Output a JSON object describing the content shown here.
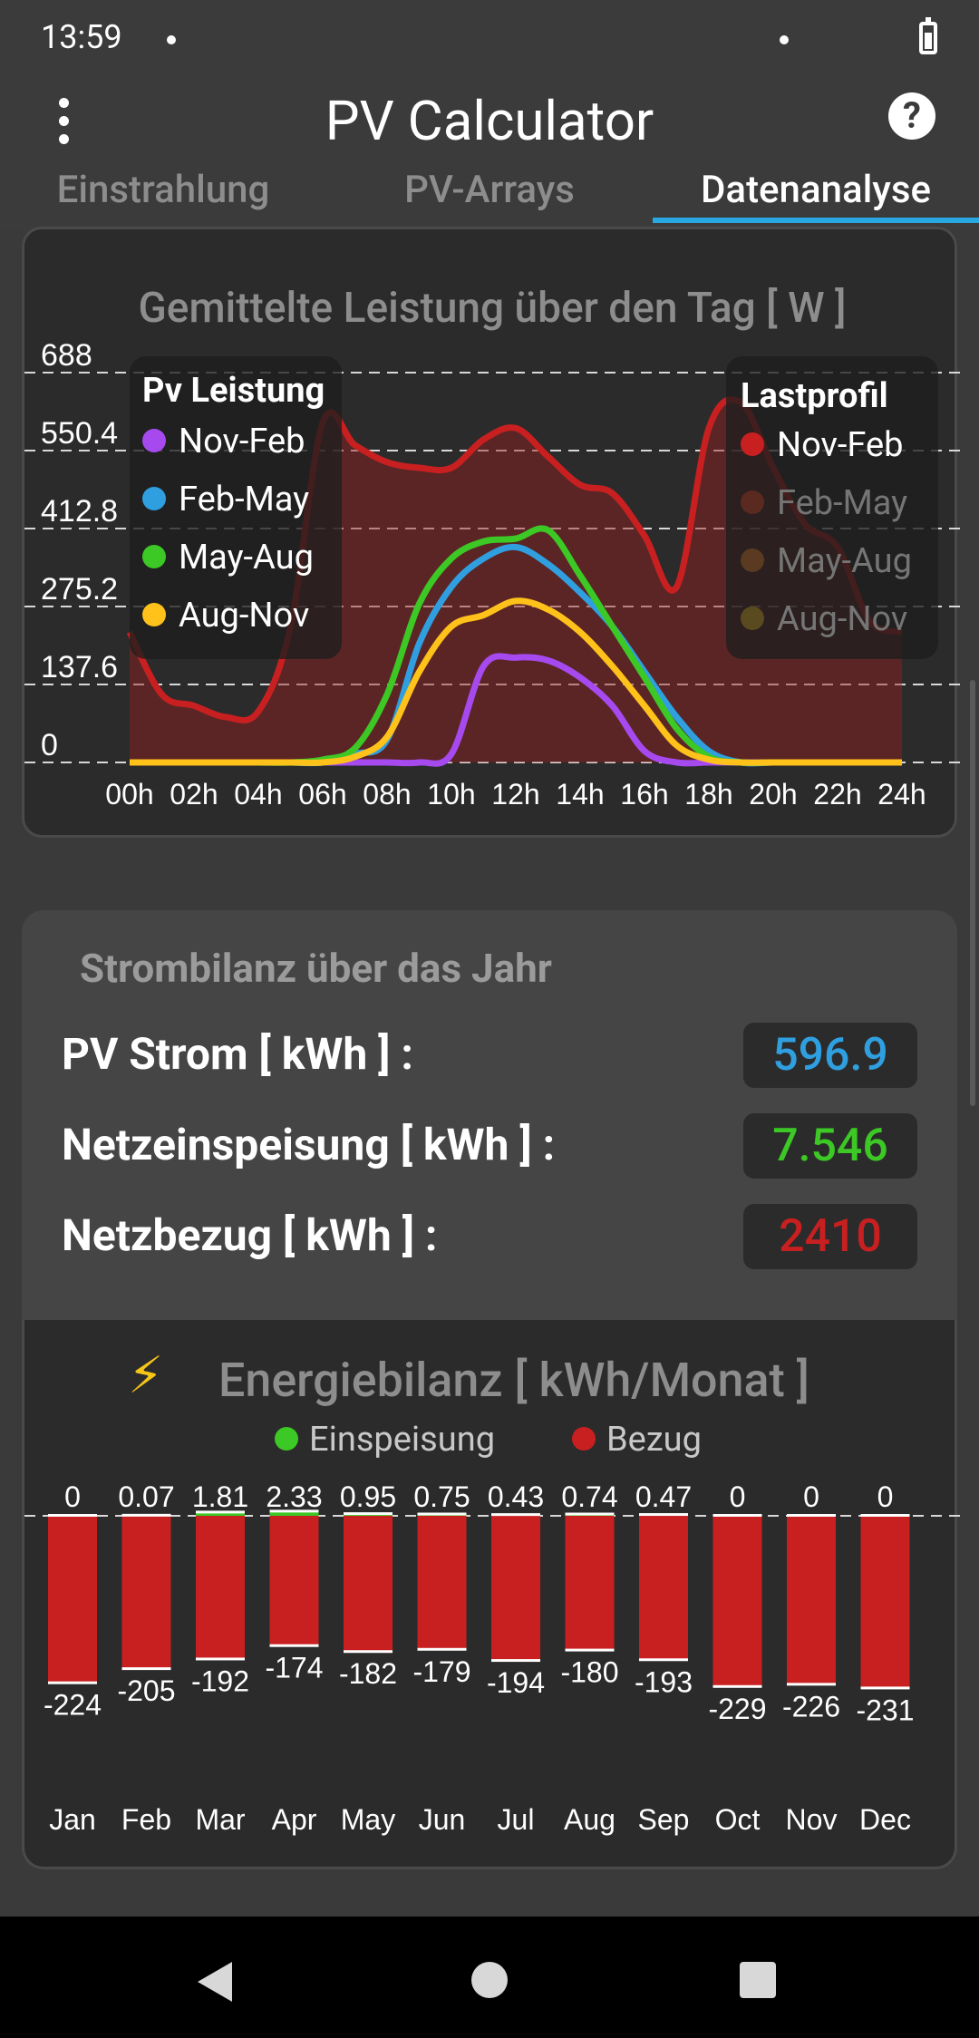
{
  "status": {
    "time": "13:59"
  },
  "app": {
    "title": "PV Calculator",
    "help_symbol": "?"
  },
  "tabs": [
    {
      "label": "Einstrahlung"
    },
    {
      "label": "PV-Arrays"
    },
    {
      "label": "Datenanalyse",
      "active": true
    }
  ],
  "daily_chart": {
    "title": "Gemittelte Leistung über den Tag  [ W ]",
    "pv_legend": {
      "title": "Pv Leistung",
      "items": [
        "Nov-Feb",
        "Feb-May",
        "May-Aug",
        "Aug-Nov"
      ]
    },
    "load_legend": {
      "title": "Lastprofil",
      "items": [
        "Nov-Feb",
        "Feb-May",
        "May-Aug",
        "Aug-Nov"
      ]
    }
  },
  "chart_data": [
    {
      "type": "line",
      "title": "Gemittelte Leistung über den Tag  [ W ]",
      "ylabel": "W",
      "ylim": [
        0,
        688
      ],
      "y_ticks": [
        "688",
        "550.4",
        "412.8",
        "275.2",
        "137.6",
        "0"
      ],
      "x_ticks": [
        "00h",
        "02h",
        "04h",
        "06h",
        "08h",
        "10h",
        "12h",
        "14h",
        "16h",
        "18h",
        "20h",
        "22h",
        "24h"
      ],
      "x": [
        0,
        1,
        2,
        3,
        4,
        5,
        6,
        7,
        8,
        9,
        10,
        11,
        12,
        13,
        14,
        15,
        16,
        17,
        18,
        19,
        20,
        21,
        22,
        23,
        24
      ],
      "series": [
        {
          "group": "Pv Leistung",
          "name": "Nov-Feb",
          "color": "#a64af0",
          "values": [
            0,
            0,
            0,
            0,
            0,
            0,
            0,
            0,
            0,
            0,
            15,
            170,
            185,
            180,
            150,
            100,
            20,
            0,
            0,
            0,
            0,
            0,
            0,
            0,
            0
          ]
        },
        {
          "group": "Pv Leistung",
          "name": "Feb-May",
          "color": "#2f9fe0",
          "values": [
            0,
            0,
            0,
            0,
            0,
            0,
            0,
            15,
            40,
            210,
            310,
            360,
            380,
            350,
            300,
            240,
            160,
            80,
            20,
            0,
            0,
            0,
            0,
            0,
            0
          ]
        },
        {
          "group": "Pv Leistung",
          "name": "May-Aug",
          "color": "#3cc825",
          "values": [
            0,
            0,
            0,
            0,
            0,
            0,
            5,
            25,
            120,
            280,
            360,
            390,
            395,
            410,
            330,
            240,
            150,
            60,
            10,
            0,
            0,
            0,
            0,
            0,
            0
          ]
        },
        {
          "group": "Pv Leistung",
          "name": "Aug-Nov",
          "color": "#ffc21a",
          "values": [
            0,
            0,
            0,
            0,
            0,
            0,
            0,
            10,
            45,
            160,
            240,
            260,
            285,
            270,
            230,
            170,
            100,
            30,
            5,
            0,
            0,
            0,
            0,
            0,
            0
          ]
        },
        {
          "group": "Lastprofil",
          "name": "Nov-Feb",
          "color": "#c82020",
          "values": [
            230,
            120,
            100,
            80,
            90,
            240,
            600,
            560,
            530,
            520,
            520,
            570,
            590,
            540,
            490,
            475,
            400,
            310,
            590,
            635,
            520,
            420,
            380,
            250,
            230
          ]
        }
      ]
    },
    {
      "type": "bar",
      "title": "Energiebilanz  [ kWh/Monat ]",
      "categories": [
        "Jan",
        "Feb",
        "Mar",
        "Apr",
        "May",
        "Jun",
        "Jul",
        "Aug",
        "Sep",
        "Oct",
        "Nov",
        "Dec"
      ],
      "series": [
        {
          "name": "Einspeisung",
          "color": "#3cc825",
          "values": [
            0,
            0.07,
            1.81,
            2.33,
            0.95,
            0.75,
            0.43,
            0.74,
            0.47,
            0,
            0,
            0
          ],
          "labels": [
            "0",
            "0.07",
            "1.81",
            "2.33",
            "0.95",
            "0.75",
            "0.43",
            "0.74",
            "0.47",
            "0",
            "0",
            "0"
          ]
        },
        {
          "name": "Bezug",
          "color": "#c82020",
          "values": [
            -224,
            -205,
            -192,
            -174,
            -182,
            -179,
            -194,
            -180,
            -193,
            -229,
            -226,
            -231
          ],
          "labels": [
            "-224",
            "-205",
            "-192",
            "-174",
            "-182",
            "-179",
            "-194",
            "-180",
            "-193",
            "-229",
            "-226",
            "-231"
          ]
        }
      ]
    }
  ],
  "balance": {
    "title": "Strombilanz über das Jahr",
    "rows": [
      {
        "label": "PV Strom  [ kWh ] :",
        "value": "596.9",
        "color": "#2f9fe0"
      },
      {
        "label": "Netzeinspeisung  [ kWh ] :",
        "value": "7.546",
        "color": "#3cc825"
      },
      {
        "label": "Netzbezug  [ kWh ] :",
        "value": "2410",
        "color": "#c82020"
      }
    ]
  },
  "energy": {
    "title": "Energiebilanz  [ kWh/Monat ]",
    "bolt": "⚡",
    "legend": [
      {
        "label": "Einspeisung",
        "color": "#3cc825"
      },
      {
        "label": "Bezug",
        "color": "#c82020"
      }
    ]
  }
}
